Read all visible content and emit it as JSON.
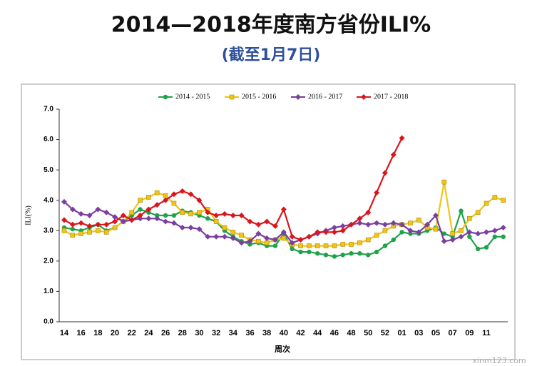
{
  "chart_data": {
    "type": "line",
    "title": "2014—2018年度南方省份ILI%",
    "subtitle": "(截至1月7日)",
    "y_label": "ILI(%)",
    "x_label": "周次",
    "watermark": "xinm123.com",
    "categories": [
      "14",
      null,
      "16",
      null,
      "18",
      null,
      "20",
      null,
      "22",
      null,
      "24",
      null,
      "26",
      null,
      "28",
      null,
      "30",
      null,
      "32",
      null,
      "34",
      null,
      "36",
      null,
      "38",
      null,
      "40",
      null,
      "42",
      null,
      "44",
      null,
      "46",
      null,
      "48",
      null,
      "50",
      null,
      "52",
      null,
      "01",
      null,
      "03",
      null,
      "05",
      null,
      "07",
      null,
      "09",
      null,
      "11",
      null,
      null
    ],
    "ylim": [
      0,
      7
    ],
    "yticks": [
      {
        "value": 0,
        "label": "0.0"
      },
      {
        "value": 1,
        "label": "1.0"
      },
      {
        "value": 2,
        "label": "2.0"
      },
      {
        "value": 3,
        "label": "3.0"
      },
      {
        "value": 4,
        "label": "4.0"
      },
      {
        "value": 5,
        "label": "5.0"
      },
      {
        "value": 6,
        "label": "6.0"
      },
      {
        "value": 7,
        "label": "7.0"
      }
    ],
    "legend": "top",
    "series": [
      {
        "name": "2014 - 2015",
        "color": "#1fa34a",
        "marker": "circle",
        "values": [
          3.1,
          3.05,
          3.0,
          3.1,
          3.2,
          3.0,
          3.1,
          3.3,
          3.5,
          3.7,
          3.6,
          3.5,
          3.5,
          3.5,
          3.65,
          3.6,
          3.5,
          3.4,
          3.3,
          3.0,
          2.8,
          2.65,
          2.55,
          2.6,
          2.5,
          2.5,
          2.9,
          2.4,
          2.3,
          2.3,
          2.25,
          2.2,
          2.15,
          2.2,
          2.25,
          2.25,
          2.2,
          2.3,
          2.5,
          2.7,
          2.95,
          2.9,
          2.9,
          3.0,
          3.1,
          2.9,
          2.8,
          3.65,
          2.8,
          2.4,
          2.45,
          2.8,
          2.8
        ]
      },
      {
        "name": "2015 - 2016",
        "color": "#f0c419",
        "marker": "square",
        "values": [
          3.0,
          2.85,
          2.9,
          2.95,
          3.0,
          2.95,
          3.1,
          3.3,
          3.6,
          4.0,
          4.1,
          4.25,
          4.15,
          3.9,
          3.6,
          3.55,
          3.6,
          3.7,
          3.3,
          3.1,
          2.95,
          2.85,
          2.7,
          2.65,
          2.6,
          2.7,
          2.75,
          2.55,
          2.5,
          2.5,
          2.5,
          2.5,
          2.5,
          2.55,
          2.55,
          2.6,
          2.7,
          2.85,
          3.0,
          3.15,
          3.2,
          3.25,
          3.35,
          3.1,
          3.05,
          4.6,
          2.9,
          3.0,
          3.4,
          3.6,
          3.9,
          4.1,
          4.0
        ]
      },
      {
        "name": "2016 - 2017",
        "color": "#7b3fa0",
        "marker": "diamond",
        "values": [
          3.95,
          3.7,
          3.55,
          3.5,
          3.7,
          3.6,
          3.45,
          3.3,
          3.35,
          3.4,
          3.4,
          3.4,
          3.3,
          3.25,
          3.1,
          3.1,
          3.05,
          2.8,
          2.8,
          2.8,
          2.75,
          2.6,
          2.65,
          2.9,
          2.75,
          2.7,
          2.95,
          2.6,
          2.7,
          2.8,
          2.9,
          3.0,
          3.1,
          3.15,
          3.2,
          3.25,
          3.2,
          3.25,
          3.2,
          3.25,
          3.2,
          3.0,
          2.95,
          3.2,
          3.5,
          2.65,
          2.7,
          2.8,
          2.95,
          2.9,
          2.95,
          3.0,
          3.1
        ]
      },
      {
        "name": "2017 - 2018",
        "color": "#d9161c",
        "marker": "diamond",
        "values": [
          3.35,
          3.2,
          3.25,
          3.15,
          3.2,
          3.2,
          3.3,
          3.5,
          3.35,
          3.5,
          3.7,
          3.85,
          4.0,
          4.2,
          4.3,
          4.2,
          4.0,
          3.6,
          3.5,
          3.55,
          3.5,
          3.5,
          3.3,
          3.2,
          3.3,
          3.15,
          3.7,
          2.8,
          2.7,
          2.8,
          2.95,
          2.95,
          2.95,
          3.0,
          3.2,
          3.4,
          3.6,
          4.25,
          4.9,
          5.5,
          6.05,
          null,
          null,
          null,
          null,
          null,
          null,
          null,
          null,
          null,
          null,
          null,
          null
        ]
      }
    ]
  }
}
